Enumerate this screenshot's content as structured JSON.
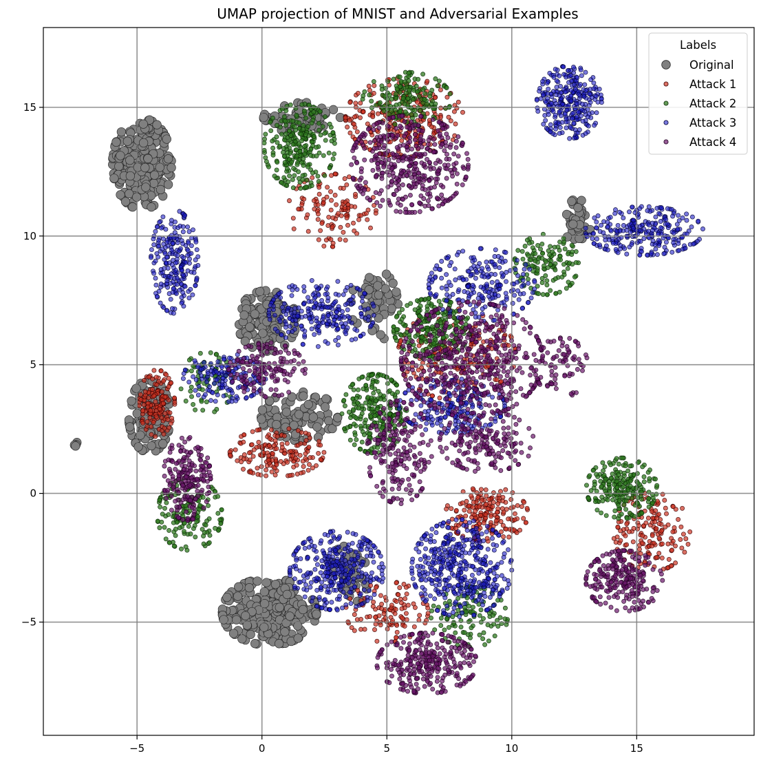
{
  "chart_data": {
    "type": "scatter",
    "title": "UMAP projection of MNIST and Adversarial Examples",
    "xlabel": "",
    "ylabel": "",
    "xlim": [
      -8.75,
      19.7
    ],
    "ylim": [
      -9.4,
      18.1
    ],
    "xticks": [
      -5,
      0,
      5,
      10,
      15
    ],
    "yticks": [
      -5,
      0,
      5,
      10,
      15
    ],
    "xtick_labels": [
      "−5",
      "0",
      "5",
      "10",
      "15"
    ],
    "ytick_labels": [
      "−5",
      "0",
      "5",
      "10",
      "15"
    ],
    "grid": true,
    "legend": {
      "title": "Labels",
      "placement": "top-right"
    },
    "series": [
      {
        "name": "Original",
        "color": "#808080",
        "edge": "#222222",
        "opacity": 1.0,
        "marker_size": "large",
        "clusters": [
          {
            "cx": -4.8,
            "cy": 12.8,
            "sx": 1.0,
            "sy": 1.5,
            "n": 260
          },
          {
            "cx": 1.6,
            "cy": 14.6,
            "sx": 1.3,
            "sy": 0.5,
            "n": 60
          },
          {
            "cx": -4.5,
            "cy": 3.0,
            "sx": 0.7,
            "sy": 1.2,
            "n": 140
          },
          {
            "cx": 0.2,
            "cy": 6.7,
            "sx": 1.0,
            "sy": 1.0,
            "n": 110
          },
          {
            "cx": 1.5,
            "cy": 3.0,
            "sx": 1.3,
            "sy": 0.8,
            "n": 90
          },
          {
            "cx": 4.5,
            "cy": 7.3,
            "sx": 0.8,
            "sy": 1.2,
            "n": 50
          },
          {
            "cx": 12.6,
            "cy": 10.6,
            "sx": 0.5,
            "sy": 0.7,
            "n": 40
          },
          {
            "cx": 0.3,
            "cy": -4.6,
            "sx": 1.6,
            "sy": 1.1,
            "n": 260
          },
          {
            "cx": 3.5,
            "cy": -3.2,
            "sx": 0.8,
            "sy": 1.0,
            "n": 40
          },
          {
            "cx": -7.4,
            "cy": 1.9,
            "sx": 0.1,
            "sy": 0.1,
            "n": 4
          }
        ]
      },
      {
        "name": "Attack 1",
        "color": "#cc3322",
        "edge": "#3a0000",
        "opacity": 0.7,
        "marker_size": "small",
        "clusters": [
          {
            "cx": 5.7,
            "cy": 14.6,
            "sx": 2.0,
            "sy": 1.3,
            "n": 260
          },
          {
            "cx": 2.8,
            "cy": 11.0,
            "sx": 1.5,
            "sy": 1.2,
            "n": 120
          },
          {
            "cx": -4.2,
            "cy": 3.5,
            "sx": 0.6,
            "sy": 1.1,
            "n": 150
          },
          {
            "cx": 0.6,
            "cy": 1.6,
            "sx": 1.6,
            "sy": 0.8,
            "n": 170
          },
          {
            "cx": 7.8,
            "cy": 5.4,
            "sx": 2.0,
            "sy": 1.5,
            "n": 180
          },
          {
            "cx": 9.0,
            "cy": -0.8,
            "sx": 1.4,
            "sy": 0.9,
            "n": 180
          },
          {
            "cx": 15.6,
            "cy": -1.5,
            "sx": 1.3,
            "sy": 1.3,
            "n": 160
          },
          {
            "cx": 5.0,
            "cy": -4.6,
            "sx": 1.4,
            "sy": 1.0,
            "n": 110
          }
        ]
      },
      {
        "name": "Attack 2",
        "color": "#2f7a1f",
        "edge": "#0a2a05",
        "opacity": 0.75,
        "marker_size": "small",
        "clusters": [
          {
            "cx": 1.5,
            "cy": 13.5,
            "sx": 1.2,
            "sy": 1.4,
            "n": 260
          },
          {
            "cx": 5.8,
            "cy": 15.3,
            "sx": 1.5,
            "sy": 0.9,
            "n": 160
          },
          {
            "cx": 4.5,
            "cy": 3.1,
            "sx": 1.1,
            "sy": 1.3,
            "n": 240
          },
          {
            "cx": 6.8,
            "cy": 6.4,
            "sx": 1.3,
            "sy": 1.0,
            "n": 220
          },
          {
            "cx": 11.4,
            "cy": 8.9,
            "sx": 1.1,
            "sy": 1.0,
            "n": 130
          },
          {
            "cx": 14.4,
            "cy": 0.2,
            "sx": 1.2,
            "sy": 1.0,
            "n": 220
          },
          {
            "cx": -2.9,
            "cy": -0.8,
            "sx": 1.1,
            "sy": 1.2,
            "n": 160
          },
          {
            "cx": 8.3,
            "cy": -4.8,
            "sx": 1.3,
            "sy": 1.0,
            "n": 110
          },
          {
            "cx": -2.2,
            "cy": 4.3,
            "sx": 0.9,
            "sy": 1.0,
            "n": 60
          }
        ]
      },
      {
        "name": "Attack 3",
        "color": "#1f1fc8",
        "edge": "#000033",
        "opacity": 0.6,
        "marker_size": "small",
        "clusters": [
          {
            "cx": 12.3,
            "cy": 15.2,
            "sx": 1.1,
            "sy": 1.2,
            "n": 280
          },
          {
            "cx": 15.3,
            "cy": 10.2,
            "sx": 2.0,
            "sy": 0.8,
            "n": 260
          },
          {
            "cx": -3.5,
            "cy": 9.0,
            "sx": 0.8,
            "sy": 1.7,
            "n": 220
          },
          {
            "cx": 2.4,
            "cy": 7.0,
            "sx": 1.8,
            "sy": 1.1,
            "n": 250
          },
          {
            "cx": 8.8,
            "cy": 8.1,
            "sx": 1.8,
            "sy": 1.2,
            "n": 220
          },
          {
            "cx": 7.6,
            "cy": 3.4,
            "sx": 1.8,
            "sy": 0.9,
            "n": 200
          },
          {
            "cx": -1.5,
            "cy": 4.5,
            "sx": 1.4,
            "sy": 0.8,
            "n": 150
          },
          {
            "cx": 3.0,
            "cy": -3.0,
            "sx": 1.6,
            "sy": 1.3,
            "n": 330
          },
          {
            "cx": 8.0,
            "cy": -2.9,
            "sx": 1.7,
            "sy": 1.6,
            "n": 420
          }
        ]
      },
      {
        "name": "Attack 4",
        "color": "#6b176b",
        "edge": "#200020",
        "opacity": 0.7,
        "marker_size": "small",
        "clusters": [
          {
            "cx": 5.9,
            "cy": 12.8,
            "sx": 2.0,
            "sy": 1.6,
            "n": 420
          },
          {
            "cx": 8.4,
            "cy": 5.2,
            "sx": 2.4,
            "sy": 1.9,
            "n": 520
          },
          {
            "cx": 9.0,
            "cy": 2.0,
            "sx": 1.6,
            "sy": 1.0,
            "n": 180
          },
          {
            "cx": 5.5,
            "cy": 1.6,
            "sx": 1.1,
            "sy": 1.7,
            "n": 200
          },
          {
            "cx": 0.2,
            "cy": 4.8,
            "sx": 1.3,
            "sy": 0.9,
            "n": 150
          },
          {
            "cx": -3.0,
            "cy": 0.6,
            "sx": 0.8,
            "sy": 1.4,
            "n": 200
          },
          {
            "cx": 6.6,
            "cy": -6.6,
            "sx": 1.7,
            "sy": 1.0,
            "n": 300
          },
          {
            "cx": 14.5,
            "cy": -3.4,
            "sx": 1.3,
            "sy": 1.0,
            "n": 240
          },
          {
            "cx": 12.0,
            "cy": 4.9,
            "sx": 0.9,
            "sy": 1.0,
            "n": 80
          }
        ]
      }
    ]
  }
}
